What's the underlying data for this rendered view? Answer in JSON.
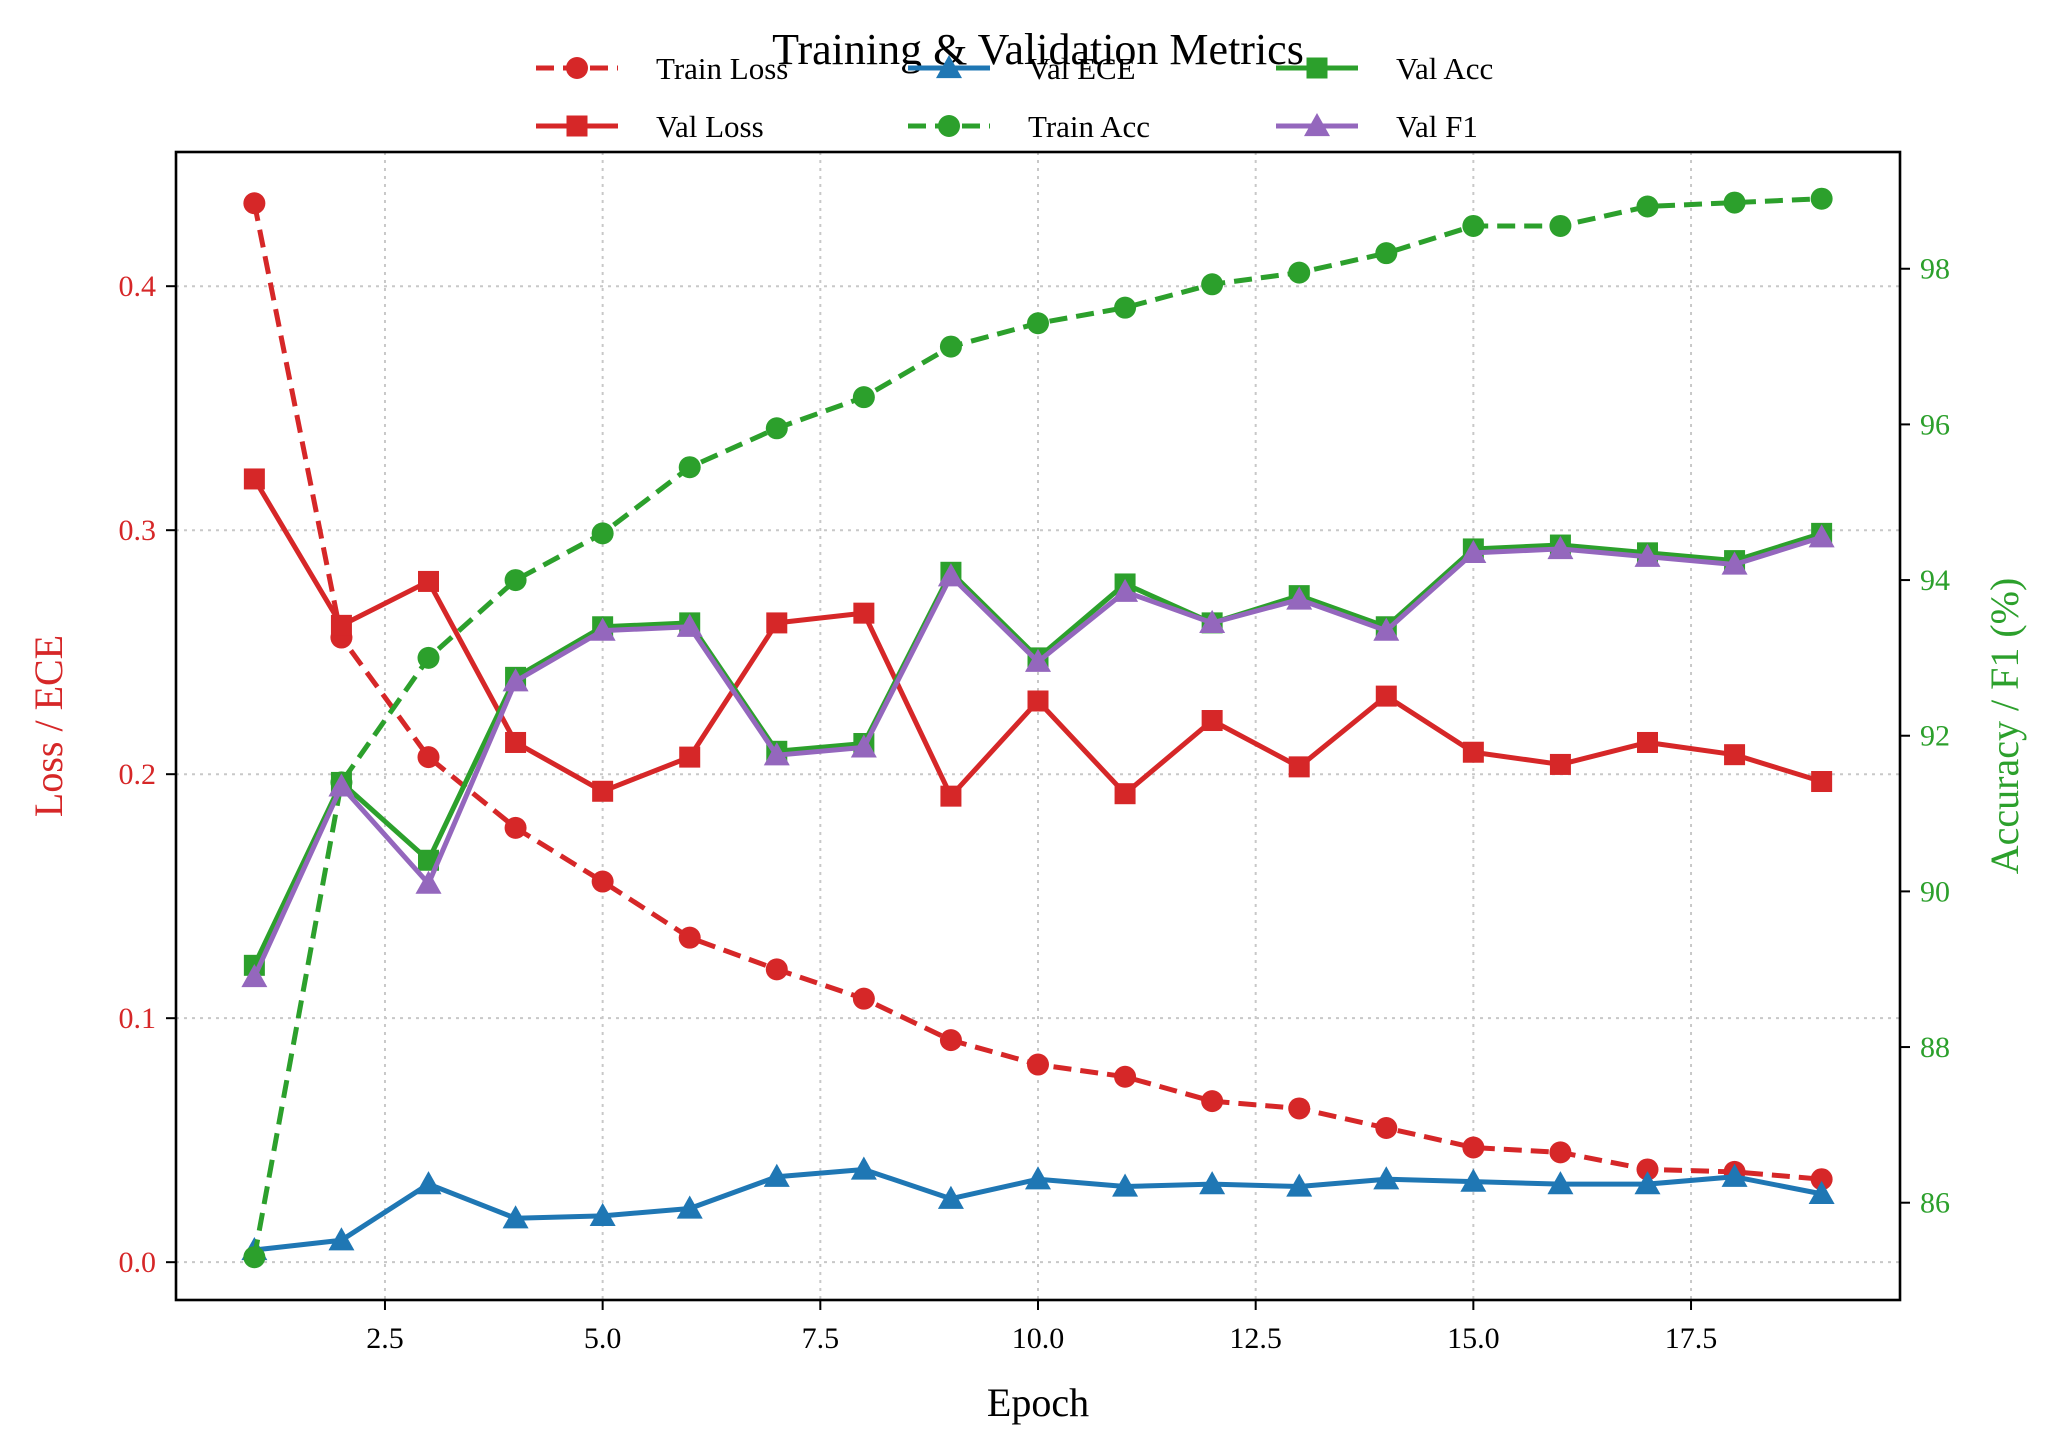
{
  "chart_data": {
    "type": "line",
    "title": "Training & Validation Metrics",
    "xlabel": "Epoch",
    "ylabel_left": "Loss / ECE",
    "ylabel_right": "Accuracy / F1 (%)",
    "x": [
      1,
      2,
      3,
      4,
      5,
      6,
      7,
      8,
      9,
      10,
      11,
      12,
      13,
      14,
      15,
      16,
      17,
      18,
      19
    ],
    "xlim": [
      0.1,
      19.9
    ],
    "ylim_left": [
      -0.0155,
      0.455
    ],
    "ylim_right": [
      84.75,
      99.5
    ],
    "xticks": [
      2.5,
      5.0,
      7.5,
      10.0,
      12.5,
      15.0,
      17.5
    ],
    "xtick_labels": [
      "2.5",
      "5.0",
      "7.5",
      "10.0",
      "12.5",
      "15.0",
      "17.5"
    ],
    "yticks_left": [
      0.0,
      0.1,
      0.2,
      0.3,
      0.4
    ],
    "ytick_labels_left": [
      "0.0",
      "0.1",
      "0.2",
      "0.3",
      "0.4"
    ],
    "yticks_right": [
      86,
      88,
      90,
      92,
      94,
      96,
      98
    ],
    "ytick_labels_right": [
      "86",
      "88",
      "90",
      "92",
      "94",
      "96",
      "98"
    ],
    "grid": true,
    "legend_position": "top-center",
    "left_axis_color": "#d62728",
    "right_axis_color": "#2ca02c",
    "series": [
      {
        "name": "Train Loss",
        "axis": "left",
        "color": "#d62728",
        "dashed": true,
        "marker": "circle",
        "values": [
          0.434,
          0.256,
          0.207,
          0.178,
          0.156,
          0.133,
          0.12,
          0.108,
          0.091,
          0.081,
          0.076,
          0.066,
          0.063,
          0.055,
          0.047,
          0.045,
          0.038,
          0.037,
          0.034
        ]
      },
      {
        "name": "Val Loss",
        "axis": "left",
        "color": "#d62728",
        "dashed": false,
        "marker": "square",
        "values": [
          0.321,
          0.261,
          0.279,
          0.213,
          0.193,
          0.207,
          0.262,
          0.266,
          0.191,
          0.23,
          0.192,
          0.222,
          0.203,
          0.232,
          0.209,
          0.204,
          0.213,
          0.208,
          0.197
        ]
      },
      {
        "name": "Val ECE",
        "axis": "left",
        "color": "#1f77b4",
        "dashed": false,
        "marker": "triangle",
        "values": [
          0.005,
          0.009,
          0.032,
          0.018,
          0.019,
          0.022,
          0.035,
          0.038,
          0.026,
          0.034,
          0.031,
          0.032,
          0.031,
          0.034,
          0.033,
          0.032,
          0.032,
          0.035,
          0.028
        ]
      },
      {
        "name": "Train Acc",
        "axis": "right",
        "color": "#2ca02c",
        "dashed": true,
        "marker": "circle",
        "values": [
          85.3,
          91.4,
          93.0,
          94.0,
          94.6,
          95.45,
          95.95,
          96.35,
          97.0,
          97.3,
          97.5,
          97.8,
          97.95,
          98.2,
          98.55,
          98.55,
          98.8,
          98.85,
          98.9
        ]
      },
      {
        "name": "Val Acc",
        "axis": "right",
        "color": "#2ca02c",
        "dashed": false,
        "marker": "square",
        "values": [
          89.05,
          91.4,
          90.4,
          92.75,
          93.4,
          93.45,
          91.8,
          91.9,
          94.1,
          93.0,
          93.95,
          93.45,
          93.8,
          93.4,
          94.4,
          94.45,
          94.35,
          94.25,
          94.6
        ]
      },
      {
        "name": "Val F1",
        "axis": "right",
        "color": "#9467bd",
        "dashed": false,
        "marker": "triangle",
        "values": [
          88.9,
          91.35,
          90.1,
          92.7,
          93.35,
          93.4,
          91.75,
          91.85,
          94.05,
          92.95,
          93.85,
          93.45,
          93.75,
          93.35,
          94.35,
          94.4,
          94.3,
          94.2,
          94.55
        ]
      }
    ]
  }
}
